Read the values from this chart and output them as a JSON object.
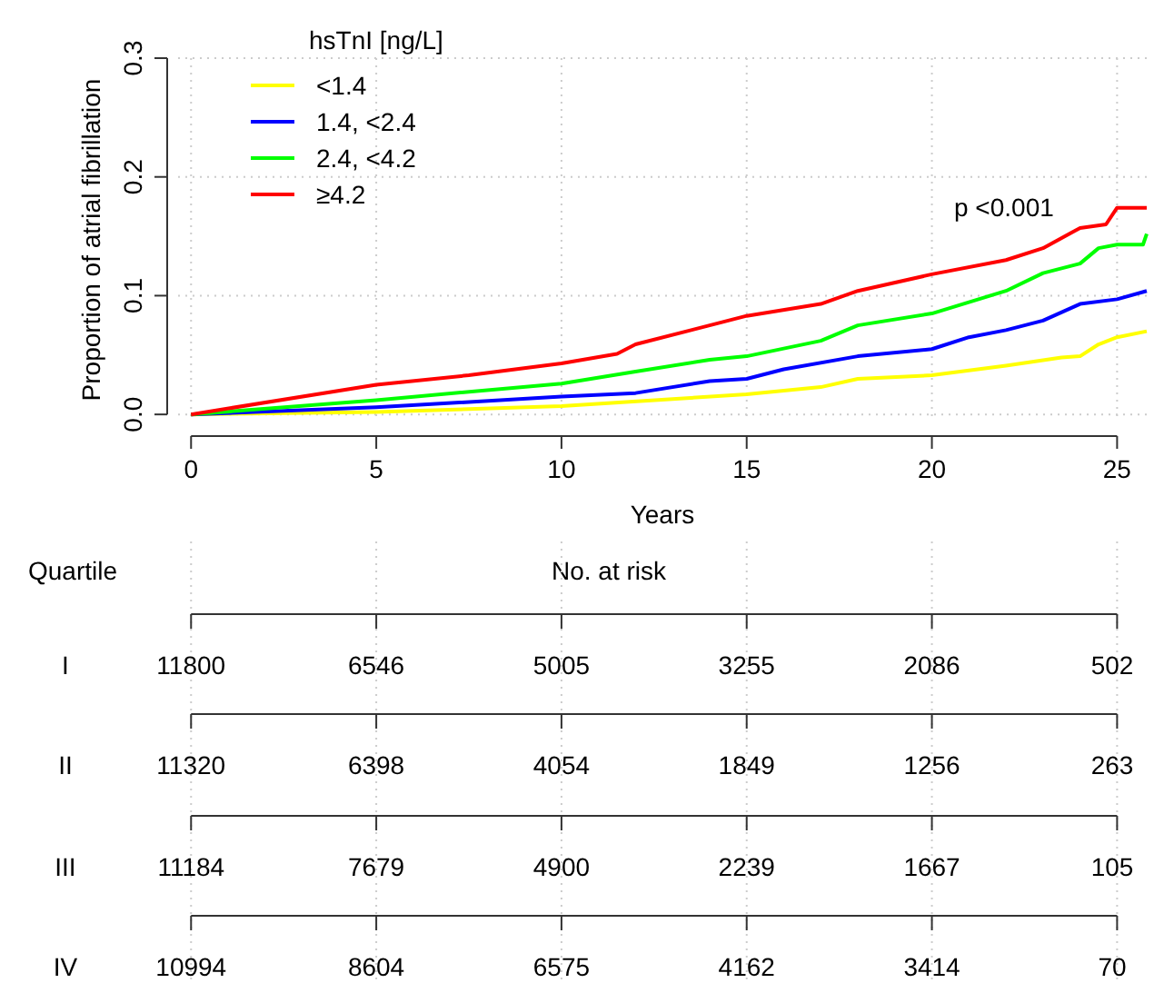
{
  "chart_data": [
    {
      "type": "line",
      "xlabel": "Years",
      "ylabel": "Proportion of atrial fibrillation",
      "legend_title": "hsTnI [ng/L]",
      "legend": "top left",
      "grid": true,
      "line_style": "solid",
      "xlim": [
        -0.35,
        25.8
      ],
      "ylim": [
        -0.006,
        0.3
      ],
      "xticks": [
        0,
        5,
        10,
        15,
        20,
        25
      ],
      "yticks": [
        {
          "value": 0,
          "label": "0.0"
        },
        0.1,
        0.2,
        0.3
      ],
      "annotations": [
        "p <0.001"
      ],
      "series": [
        {
          "name": "<1.4",
          "color": "#ffff00",
          "x": [
            0,
            5,
            10,
            13,
            15,
            17,
            18,
            20,
            22,
            23.5,
            24,
            24.5,
            25,
            25.8
          ],
          "values": [
            0,
            0.002,
            0.007,
            0.013,
            0.017,
            0.023,
            0.03,
            0.033,
            0.041,
            0.048,
            0.049,
            0.059,
            0.065,
            0.07
          ]
        },
        {
          "name": "1.4, <2.4",
          "color": "#0000ff",
          "x": [
            0,
            5,
            10,
            12,
            14,
            15,
            16,
            18,
            20,
            21,
            22,
            23,
            24,
            25,
            25.8
          ],
          "values": [
            0,
            0.006,
            0.015,
            0.018,
            0.028,
            0.03,
            0.038,
            0.049,
            0.055,
            0.065,
            0.071,
            0.079,
            0.093,
            0.097,
            0.104
          ]
        },
        {
          "name": "2.4, <4.2",
          "color": "#00ff00",
          "x": [
            0,
            5,
            10,
            12,
            14,
            15,
            17,
            18,
            20,
            22,
            23,
            24,
            24.5,
            25,
            25.7,
            25.8
          ],
          "values": [
            0,
            0.012,
            0.026,
            0.036,
            0.046,
            0.049,
            0.062,
            0.075,
            0.085,
            0.104,
            0.119,
            0.127,
            0.14,
            0.143,
            0.143,
            0.152
          ]
        },
        {
          "name": "≥4.2",
          "color": "#ff0000",
          "x": [
            0,
            5,
            7.5,
            10,
            11.5,
            12,
            14,
            15,
            17,
            18,
            20,
            22,
            23,
            24,
            24.7,
            25,
            25.8
          ],
          "values": [
            0,
            0.025,
            0.033,
            0.043,
            0.051,
            0.059,
            0.075,
            0.083,
            0.093,
            0.104,
            0.118,
            0.13,
            0.14,
            0.157,
            0.16,
            0.174,
            0.174
          ]
        }
      ]
    },
    {
      "type": "other",
      "title": "No. at risk",
      "annotations": [
        "Quartile",
        "I",
        "11800",
        "6546",
        "5005",
        "3255",
        "2086",
        "502",
        "II",
        "11320",
        "6398",
        "4054",
        "1849",
        "1256",
        "263",
        "III",
        "11184",
        "7679",
        "4900",
        "2239",
        "1667",
        "105",
        "IV",
        "10994",
        "8604",
        "6575",
        "4162",
        "3414",
        "70"
      ]
    }
  ]
}
